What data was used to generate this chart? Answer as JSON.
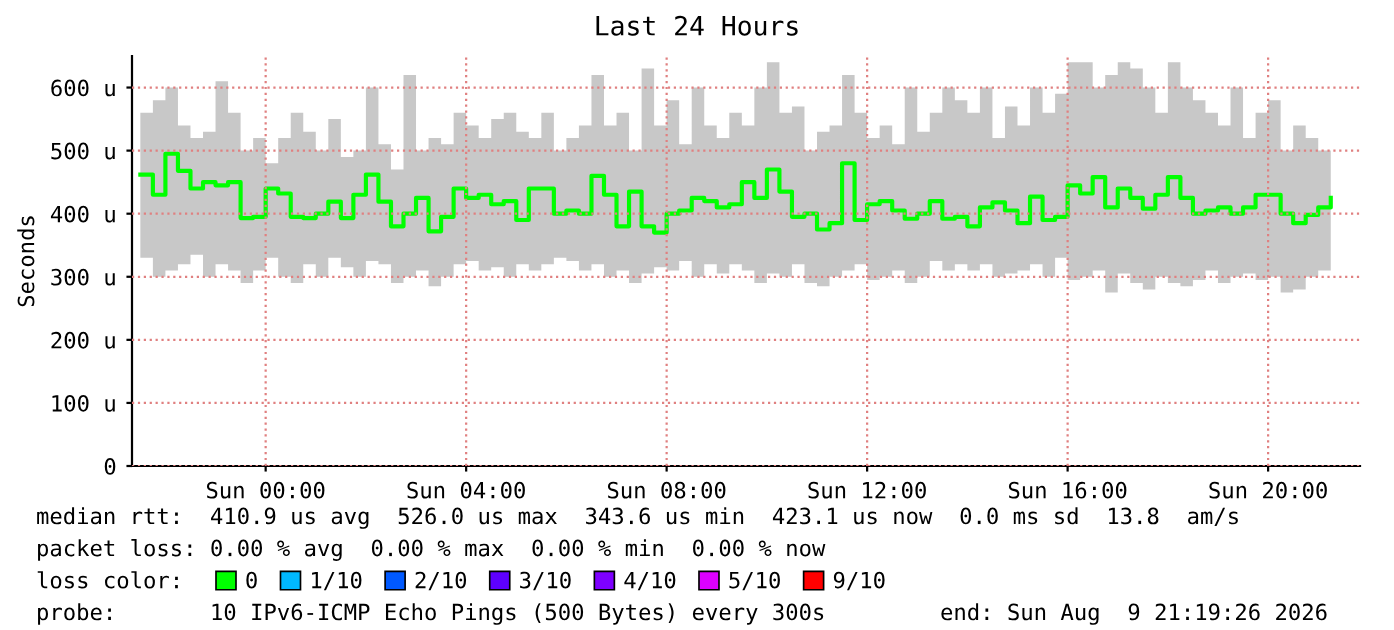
{
  "chart_data": {
    "type": "step",
    "title": "Last 24 Hours",
    "ylabel": "Seconds",
    "legend_title": "loss color:",
    "legend": "bottom",
    "grid": true,
    "line_style": "solid",
    "xlim": [
      "2026-08-08T21:20",
      "2026-08-09T21:50"
    ],
    "xticks": [
      {
        "value": "2026-08-09T00:00",
        "label": "Sun 00:00"
      },
      {
        "value": "2026-08-09T04:00",
        "label": "Sun 04:00"
      },
      {
        "value": "2026-08-09T08:00",
        "label": "Sun 08:00"
      },
      {
        "value": "2026-08-09T12:00",
        "label": "Sun 12:00"
      },
      {
        "value": "2026-08-09T16:00",
        "label": "Sun 16:00"
      },
      {
        "value": "2026-08-09T20:00",
        "label": "Sun 20:00"
      }
    ],
    "ylim": [
      0,
      650
    ],
    "yticks": [
      0,
      {
        "value": 100,
        "label": "100 u"
      },
      {
        "value": 200,
        "label": "200 u"
      },
      {
        "value": 300,
        "label": "300 u"
      },
      {
        "value": 400,
        "label": "400 u"
      },
      {
        "value": 500,
        "label": "500 u"
      },
      {
        "value": 600,
        "label": "600 u"
      }
    ],
    "x": [
      "2026-08-08T21:30",
      "2026-08-08T21:45",
      "2026-08-08T22:00",
      "2026-08-08T22:15",
      "2026-08-08T22:30",
      "2026-08-08T22:45",
      "2026-08-08T23:00",
      "2026-08-08T23:15",
      "2026-08-08T23:30",
      "2026-08-08T23:45",
      "2026-08-09T00:00",
      "2026-08-09T00:15",
      "2026-08-09T00:30",
      "2026-08-09T00:45",
      "2026-08-09T01:00",
      "2026-08-09T01:15",
      "2026-08-09T01:30",
      "2026-08-09T01:45",
      "2026-08-09T02:00",
      "2026-08-09T02:15",
      "2026-08-09T02:30",
      "2026-08-09T02:45",
      "2026-08-09T03:00",
      "2026-08-09T03:15",
      "2026-08-09T03:30",
      "2026-08-09T03:45",
      "2026-08-09T04:00",
      "2026-08-09T04:15",
      "2026-08-09T04:30",
      "2026-08-09T04:45",
      "2026-08-09T05:00",
      "2026-08-09T05:15",
      "2026-08-09T05:30",
      "2026-08-09T05:45",
      "2026-08-09T06:00",
      "2026-08-09T06:15",
      "2026-08-09T06:30",
      "2026-08-09T06:45",
      "2026-08-09T07:00",
      "2026-08-09T07:15",
      "2026-08-09T07:30",
      "2026-08-09T07:45",
      "2026-08-09T08:00",
      "2026-08-09T08:15",
      "2026-08-09T08:30",
      "2026-08-09T08:45",
      "2026-08-09T09:00",
      "2026-08-09T09:15",
      "2026-08-09T09:30",
      "2026-08-09T09:45",
      "2026-08-09T10:00",
      "2026-08-09T10:15",
      "2026-08-09T10:30",
      "2026-08-09T10:45",
      "2026-08-09T11:00",
      "2026-08-09T11:15",
      "2026-08-09T11:30",
      "2026-08-09T11:45",
      "2026-08-09T12:00",
      "2026-08-09T12:15",
      "2026-08-09T12:30",
      "2026-08-09T12:45",
      "2026-08-09T13:00",
      "2026-08-09T13:15",
      "2026-08-09T13:30",
      "2026-08-09T13:45",
      "2026-08-09T14:00",
      "2026-08-09T14:15",
      "2026-08-09T14:30",
      "2026-08-09T14:45",
      "2026-08-09T15:00",
      "2026-08-09T15:15",
      "2026-08-09T15:30",
      "2026-08-09T15:45",
      "2026-08-09T16:00",
      "2026-08-09T16:15",
      "2026-08-09T16:30",
      "2026-08-09T16:45",
      "2026-08-09T17:00",
      "2026-08-09T17:15",
      "2026-08-09T17:30",
      "2026-08-09T17:45",
      "2026-08-09T18:00",
      "2026-08-09T18:15",
      "2026-08-09T18:30",
      "2026-08-09T18:45",
      "2026-08-09T19:00",
      "2026-08-09T19:15",
      "2026-08-09T19:30",
      "2026-08-09T19:45",
      "2026-08-09T20:00",
      "2026-08-09T20:15",
      "2026-08-09T20:30",
      "2026-08-09T20:45",
      "2026-08-09T21:00",
      "2026-08-09T21:15"
    ],
    "series": [
      {
        "name": "0",
        "color": "#00ff00",
        "values": [
          462,
          430,
          495,
          468,
          440,
          450,
          445,
          450,
          393,
          395,
          440,
          432,
          395,
          393,
          400,
          419,
          393,
          430,
          462,
          419,
          380,
          400,
          425,
          372,
          395,
          440,
          425,
          430,
          415,
          420,
          390,
          440,
          440,
          400,
          405,
          400,
          460,
          430,
          380,
          435,
          380,
          370,
          400,
          405,
          425,
          420,
          410,
          415,
          450,
          425,
          470,
          435,
          395,
          400,
          375,
          385,
          480,
          390,
          415,
          420,
          405,
          392,
          400,
          420,
          392,
          395,
          380,
          410,
          418,
          405,
          385,
          427,
          390,
          395,
          445,
          432,
          458,
          410,
          440,
          425,
          408,
          430,
          458,
          425,
          400,
          405,
          410,
          400,
          410,
          430,
          430,
          400,
          385,
          398,
          410,
          425
        ],
        "lower": [
          330,
          300,
          310,
          320,
          335,
          300,
          320,
          310,
          290,
          310,
          330,
          300,
          290,
          320,
          300,
          330,
          315,
          300,
          325,
          320,
          290,
          300,
          310,
          285,
          300,
          320,
          325,
          310,
          315,
          300,
          320,
          310,
          320,
          330,
          325,
          310,
          320,
          300,
          310,
          290,
          305,
          315,
          310,
          325,
          300,
          320,
          305,
          320,
          310,
          290,
          305,
          300,
          320,
          290,
          285,
          300,
          310,
          320,
          295,
          300,
          310,
          290,
          300,
          325,
          310,
          320,
          310,
          320,
          300,
          305,
          310,
          320,
          300,
          330,
          295,
          300,
          310,
          275,
          305,
          290,
          280,
          300,
          290,
          285,
          295,
          310,
          290,
          300,
          305,
          295,
          300,
          275,
          280,
          300,
          310,
          320
        ],
        "upper": [
          560,
          580,
          600,
          540,
          520,
          530,
          610,
          560,
          500,
          520,
          480,
          520,
          560,
          530,
          500,
          550,
          490,
          500,
          600,
          510,
          470,
          620,
          500,
          520,
          510,
          560,
          540,
          520,
          550,
          560,
          530,
          520,
          560,
          500,
          520,
          540,
          620,
          540,
          560,
          500,
          630,
          540,
          580,
          510,
          600,
          540,
          520,
          560,
          540,
          600,
          640,
          560,
          570,
          500,
          530,
          540,
          620,
          560,
          520,
          540,
          510,
          600,
          530,
          560,
          600,
          580,
          560,
          600,
          520,
          570,
          540,
          600,
          560,
          590,
          640,
          640,
          600,
          620,
          640,
          630,
          600,
          560,
          640,
          600,
          580,
          560,
          540,
          600,
          520,
          560,
          580,
          500,
          540,
          520,
          500,
          490
        ]
      },
      {
        "name": "1/10",
        "color": "#00b8ff",
        "values": [
          null,
          null,
          null,
          null,
          null,
          null,
          null,
          null,
          null,
          null,
          null,
          null,
          null,
          null,
          null,
          null,
          null,
          null,
          null,
          null,
          null,
          null,
          null,
          null,
          null,
          null,
          null,
          null,
          null,
          null,
          null,
          null,
          null,
          null,
          null,
          null,
          null,
          null,
          null,
          null,
          null,
          null,
          null,
          null,
          null,
          null,
          null,
          null,
          null,
          null,
          null,
          null,
          null,
          null,
          null,
          null,
          null,
          null,
          null,
          null,
          null,
          null,
          null,
          null,
          null,
          null,
          null,
          null,
          null,
          null,
          null,
          null,
          null,
          null,
          null,
          null,
          null,
          null,
          null,
          null,
          null,
          null,
          null,
          null,
          null,
          null,
          null,
          null,
          null,
          null,
          null,
          null,
          null,
          null,
          null,
          null
        ]
      },
      {
        "name": "2/10",
        "color": "#0059ff",
        "values": [
          null,
          null,
          null,
          null,
          null,
          null,
          null,
          null,
          null,
          null,
          null,
          null,
          null,
          null,
          null,
          null,
          null,
          null,
          null,
          null,
          null,
          null,
          null,
          null,
          null,
          null,
          null,
          null,
          null,
          null,
          null,
          null,
          null,
          null,
          null,
          null,
          null,
          null,
          null,
          null,
          null,
          null,
          null,
          null,
          null,
          null,
          null,
          null,
          null,
          null,
          null,
          null,
          null,
          null,
          null,
          null,
          null,
          null,
          null,
          null,
          null,
          null,
          null,
          null,
          null,
          null,
          null,
          null,
          null,
          null,
          null,
          null,
          null,
          null,
          null,
          null,
          null,
          null,
          null,
          null,
          null,
          null,
          null,
          null,
          null,
          null,
          null,
          null,
          null,
          null,
          null,
          null,
          null,
          null,
          null,
          null
        ]
      },
      {
        "name": "3/10",
        "color": "#5e00ff",
        "values": [
          null,
          null,
          null,
          null,
          null,
          null,
          null,
          null,
          null,
          null,
          null,
          null,
          null,
          null,
          null,
          null,
          null,
          null,
          null,
          null,
          null,
          null,
          null,
          null,
          null,
          null,
          null,
          null,
          null,
          null,
          null,
          null,
          null,
          null,
          null,
          null,
          null,
          null,
          null,
          null,
          null,
          null,
          null,
          null,
          null,
          null,
          null,
          null,
          null,
          null,
          null,
          null,
          null,
          null,
          null,
          null,
          null,
          null,
          null,
          null,
          null,
          null,
          null,
          null,
          null,
          null,
          null,
          null,
          null,
          null,
          null,
          null,
          null,
          null,
          null,
          null,
          null,
          null,
          null,
          null,
          null,
          null,
          null,
          null,
          null,
          null,
          null,
          null,
          null,
          null,
          null,
          null,
          null,
          null,
          null,
          null
        ]
      },
      {
        "name": "4/10",
        "color": "#7e00ff",
        "values": [
          null,
          null,
          null,
          null,
          null,
          null,
          null,
          null,
          null,
          null,
          null,
          null,
          null,
          null,
          null,
          null,
          null,
          null,
          null,
          null,
          null,
          null,
          null,
          null,
          null,
          null,
          null,
          null,
          null,
          null,
          null,
          null,
          null,
          null,
          null,
          null,
          null,
          null,
          null,
          null,
          null,
          null,
          null,
          null,
          null,
          null,
          null,
          null,
          null,
          null,
          null,
          null,
          null,
          null,
          null,
          null,
          null,
          null,
          null,
          null,
          null,
          null,
          null,
          null,
          null,
          null,
          null,
          null,
          null,
          null,
          null,
          null,
          null,
          null,
          null,
          null,
          null,
          null,
          null,
          null,
          null,
          null,
          null,
          null,
          null,
          null,
          null,
          null,
          null,
          null,
          null,
          null,
          null,
          null,
          null,
          null
        ]
      },
      {
        "name": "5/10",
        "color": "#dd00ff",
        "values": [
          null,
          null,
          null,
          null,
          null,
          null,
          null,
          null,
          null,
          null,
          null,
          null,
          null,
          null,
          null,
          null,
          null,
          null,
          null,
          null,
          null,
          null,
          null,
          null,
          null,
          null,
          null,
          null,
          null,
          null,
          null,
          null,
          null,
          null,
          null,
          null,
          null,
          null,
          null,
          null,
          null,
          null,
          null,
          null,
          null,
          null,
          null,
          null,
          null,
          null,
          null,
          null,
          null,
          null,
          null,
          null,
          null,
          null,
          null,
          null,
          null,
          null,
          null,
          null,
          null,
          null,
          null,
          null,
          null,
          null,
          null,
          null,
          null,
          null,
          null,
          null,
          null,
          null,
          null,
          null,
          null,
          null,
          null,
          null,
          null,
          null,
          null,
          null,
          null,
          null,
          null,
          null,
          null,
          null,
          null,
          null
        ]
      },
      {
        "name": "9/10",
        "color": "#ff0000",
        "values": [
          null,
          null,
          null,
          null,
          null,
          null,
          null,
          null,
          null,
          null,
          null,
          null,
          null,
          null,
          null,
          null,
          null,
          null,
          null,
          null,
          null,
          null,
          null,
          null,
          null,
          null,
          null,
          null,
          null,
          null,
          null,
          null,
          null,
          null,
          null,
          null,
          null,
          null,
          null,
          null,
          null,
          null,
          null,
          null,
          null,
          null,
          null,
          null,
          null,
          null,
          null,
          null,
          null,
          null,
          null,
          null,
          null,
          null,
          null,
          null,
          null,
          null,
          null,
          null,
          null,
          null,
          null,
          null,
          null,
          null,
          null,
          null,
          null,
          null,
          null,
          null,
          null,
          null,
          null,
          null,
          null,
          null,
          null,
          null,
          null,
          null,
          null,
          null,
          null,
          null,
          null,
          null,
          null,
          null,
          null,
          null
        ]
      }
    ],
    "annotations": [
      "median rtt:  410.9 us avg  526.0 us max  343.6 us min  423.1 us now  0.0 ms sd  13.8  am/s",
      "packet loss: 0.00 % avg  0.00 % max  0.00 % min  0.00 % now",
      "probe:       10 IPv6-ICMP Echo Pings (500 Bytes) every 300s",
      "end: Sun Aug  9 21:19:26 2026"
    ]
  }
}
